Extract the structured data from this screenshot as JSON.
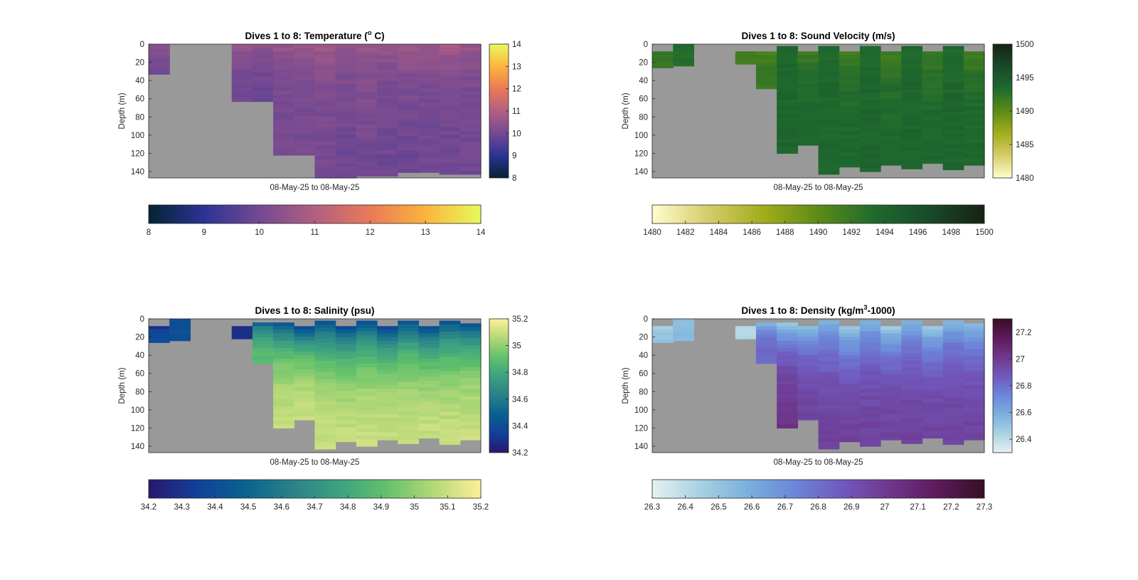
{
  "chart_data": [
    {
      "id": "temperature",
      "type": "heatmap",
      "title": "Dives 1 to 8: Temperature (°C)",
      "title_parts": [
        "Dives 1 to 8: Temperature (",
        "o",
        " C)"
      ],
      "xlabel": "08-May-25 to 08-May-25",
      "ylabel": "Depth (m)",
      "ylim": [
        0,
        147
      ],
      "y_ticks": [
        "0",
        "20",
        "40",
        "60",
        "80",
        "100",
        "120",
        "140"
      ],
      "colormap": "thermal",
      "clim": [
        8,
        14
      ],
      "colorbar_right_ticks": [
        "8",
        "9",
        "10",
        "11",
        "12",
        "13",
        "14"
      ],
      "colorbar_bottom_ticks": [
        "8",
        "9",
        "10",
        "11",
        "12",
        "13",
        "14"
      ],
      "profiles": [
        {
          "max_depth": 33,
          "surface": 10.6,
          "deep": 10.0
        },
        {
          "max_depth": 0,
          "surface": 10.5,
          "deep": 10.0
        },
        {
          "max_depth": 0,
          "surface": 10.5,
          "deep": 10.0
        },
        {
          "max_depth": 0,
          "surface": 10.5,
          "deep": 10.0
        },
        {
          "max_depth": 63,
          "surface": 10.6,
          "deep": 9.9
        },
        {
          "max_depth": 63,
          "surface": 10.5,
          "deep": 9.9
        },
        {
          "max_depth": 122,
          "surface": 10.6,
          "deep": 10.0
        },
        {
          "max_depth": 122,
          "surface": 10.6,
          "deep": 10.0
        },
        {
          "max_depth": 147,
          "surface": 10.7,
          "deep": 10.0
        },
        {
          "max_depth": 147,
          "surface": 10.6,
          "deep": 9.9
        },
        {
          "max_depth": 145,
          "surface": 10.7,
          "deep": 10.0
        },
        {
          "max_depth": 145,
          "surface": 10.6,
          "deep": 9.9
        },
        {
          "max_depth": 141,
          "surface": 10.7,
          "deep": 9.9
        },
        {
          "max_depth": 141,
          "surface": 10.6,
          "deep": 9.9
        },
        {
          "max_depth": 143,
          "surface": 10.8,
          "deep": 9.9
        },
        {
          "max_depth": 143,
          "surface": 10.6,
          "deep": 9.9
        }
      ]
    },
    {
      "id": "sound_velocity",
      "type": "heatmap",
      "title": "Dives 1 to 8: Sound Velocity (m/s)",
      "title_parts": [
        "Dives 1 to 8: Sound Velocity (m/s)",
        "",
        ""
      ],
      "xlabel": "08-May-25 to 08-May-25",
      "ylabel": "Depth (m)",
      "ylim": [
        0,
        147
      ],
      "y_ticks": [
        "0",
        "20",
        "40",
        "60",
        "80",
        "100",
        "120",
        "140"
      ],
      "colormap": "speed",
      "clim": [
        1480,
        1500
      ],
      "colorbar_right_ticks": [
        "1480",
        "1485",
        "1490",
        "1495",
        "1500"
      ],
      "colorbar_bottom_ticks": [
        "1480",
        "1482",
        "1484",
        "1486",
        "1488",
        "1490",
        "1492",
        "1494",
        "1496",
        "1498",
        "1500"
      ],
      "profiles": [
        {
          "top_depth": 8,
          "max_depth": 26,
          "surface": 1492.5,
          "deep": 1492.0
        },
        {
          "top_depth": 0,
          "max_depth": 24,
          "surface": 1494.0,
          "deep": 1493.0
        },
        {
          "max_depth": 0,
          "surface": 1492,
          "deep": 1492
        },
        {
          "max_depth": 0,
          "surface": 1492,
          "deep": 1492
        },
        {
          "top_depth": 8,
          "max_depth": 22,
          "surface": 1491.0,
          "deep": 1491.5
        },
        {
          "top_depth": 8,
          "max_depth": 49,
          "surface": 1491.0,
          "deep": 1492.0
        },
        {
          "top_depth": 2,
          "max_depth": 120,
          "surface": 1493.5,
          "deep": 1493.8
        },
        {
          "top_depth": 8,
          "max_depth": 111,
          "surface": 1491.5,
          "deep": 1493.8
        },
        {
          "top_depth": 2,
          "max_depth": 143,
          "surface": 1493.5,
          "deep": 1493.8
        },
        {
          "top_depth": 8,
          "max_depth": 135,
          "surface": 1491.5,
          "deep": 1493.8
        },
        {
          "top_depth": 2,
          "max_depth": 140,
          "surface": 1493.5,
          "deep": 1493.8
        },
        {
          "top_depth": 8,
          "max_depth": 133,
          "surface": 1491.5,
          "deep": 1493.8
        },
        {
          "top_depth": 2,
          "max_depth": 137,
          "surface": 1493.5,
          "deep": 1493.8
        },
        {
          "top_depth": 8,
          "max_depth": 131,
          "surface": 1491.5,
          "deep": 1493.8
        },
        {
          "top_depth": 2,
          "max_depth": 138,
          "surface": 1493.5,
          "deep": 1493.8
        },
        {
          "top_depth": 8,
          "max_depth": 133,
          "surface": 1491.5,
          "deep": 1493.8
        }
      ]
    },
    {
      "id": "salinity",
      "type": "heatmap",
      "title": "Dives 1 to 8: Salinity (psu)",
      "title_parts": [
        "Dives 1 to 8: Salinity (psu)",
        "",
        ""
      ],
      "xlabel": "08-May-25 to 08-May-25",
      "ylabel": "Depth (m)",
      "ylim": [
        0,
        147
      ],
      "y_ticks": [
        "0",
        "20",
        "40",
        "60",
        "80",
        "100",
        "120",
        "140"
      ],
      "colormap": "haline",
      "clim": [
        34.2,
        35.2
      ],
      "colorbar_right_ticks": [
        "34.2",
        "34.4",
        "34.6",
        "34.8",
        "35",
        "35.2"
      ],
      "colorbar_bottom_ticks": [
        "34.2",
        "34.3",
        "34.4",
        "34.5",
        "34.6",
        "34.7",
        "34.8",
        "34.9",
        "35",
        "35.1",
        "35.2"
      ],
      "profiles": [
        {
          "top_depth": 8,
          "max_depth": 26,
          "surface": 34.28,
          "deep": 34.4
        },
        {
          "top_depth": 0,
          "max_depth": 24,
          "surface": 34.42,
          "deep": 34.42
        },
        {
          "max_depth": 0,
          "surface": 34.5,
          "deep": 34.5
        },
        {
          "max_depth": 0,
          "surface": 34.5,
          "deep": 34.5
        },
        {
          "top_depth": 8,
          "max_depth": 22,
          "surface": 34.28,
          "deep": 34.3
        },
        {
          "top_depth": 4,
          "max_depth": 49,
          "surface": 34.45,
          "deep": 34.9
        },
        {
          "top_depth": 4,
          "max_depth": 120,
          "surface": 34.4,
          "deep": 35.12
        },
        {
          "top_depth": 8,
          "max_depth": 111,
          "surface": 34.35,
          "deep": 35.12
        },
        {
          "top_depth": 2,
          "max_depth": 143,
          "surface": 34.4,
          "deep": 35.12
        },
        {
          "top_depth": 8,
          "max_depth": 135,
          "surface": 34.35,
          "deep": 35.12
        },
        {
          "top_depth": 2,
          "max_depth": 140,
          "surface": 34.4,
          "deep": 35.12
        },
        {
          "top_depth": 8,
          "max_depth": 133,
          "surface": 34.35,
          "deep": 35.12
        },
        {
          "top_depth": 2,
          "max_depth": 137,
          "surface": 34.4,
          "deep": 35.12
        },
        {
          "top_depth": 8,
          "max_depth": 131,
          "surface": 34.35,
          "deep": 35.12
        },
        {
          "top_depth": 2,
          "max_depth": 138,
          "surface": 34.4,
          "deep": 35.12
        },
        {
          "top_depth": 5,
          "max_depth": 133,
          "surface": 34.4,
          "deep": 35.12
        }
      ]
    },
    {
      "id": "density",
      "type": "heatmap",
      "title": "Dives 1 to 8: Density (kg/m³-1000)",
      "title_parts": [
        "Dives 1 to 8: Density (kg/m",
        "3",
        "-1000)"
      ],
      "xlabel": "08-May-25 to 08-May-25",
      "ylabel": "Depth (m)",
      "ylim": [
        0,
        147
      ],
      "y_ticks": [
        "0",
        "20",
        "40",
        "60",
        "80",
        "100",
        "120",
        "140"
      ],
      "colormap": "dense",
      "clim": [
        26.3,
        27.3
      ],
      "colorbar_right_ticks": [
        "26.4",
        "26.6",
        "26.8",
        "27",
        "27.2"
      ],
      "colorbar_bottom_ticks": [
        "26.3",
        "26.4",
        "26.5",
        "26.6",
        "26.7",
        "26.8",
        "26.9",
        "27",
        "27.1",
        "27.2",
        "27.3"
      ],
      "profiles": [
        {
          "top_depth": 8,
          "max_depth": 26,
          "surface": 26.4,
          "deep": 26.5
        },
        {
          "top_depth": 0,
          "max_depth": 24,
          "surface": 26.5,
          "deep": 26.55
        },
        {
          "max_depth": 0,
          "surface": 26.5,
          "deep": 26.5
        },
        {
          "max_depth": 0,
          "surface": 26.5,
          "deep": 26.5
        },
        {
          "top_depth": 8,
          "max_depth": 22,
          "surface": 26.38,
          "deep": 26.42
        },
        {
          "top_depth": 4,
          "max_depth": 49,
          "surface": 26.55,
          "deep": 26.85
        },
        {
          "top_depth": 4,
          "max_depth": 120,
          "surface": 26.45,
          "deep": 27.05
        },
        {
          "top_depth": 8,
          "max_depth": 111,
          "surface": 26.5,
          "deep": 26.98
        },
        {
          "top_depth": 2,
          "max_depth": 143,
          "surface": 26.55,
          "deep": 26.98
        },
        {
          "top_depth": 8,
          "max_depth": 135,
          "surface": 26.45,
          "deep": 26.98
        },
        {
          "top_depth": 2,
          "max_depth": 140,
          "surface": 26.55,
          "deep": 26.98
        },
        {
          "top_depth": 8,
          "max_depth": 133,
          "surface": 26.45,
          "deep": 26.98
        },
        {
          "top_depth": 2,
          "max_depth": 137,
          "surface": 26.55,
          "deep": 26.98
        },
        {
          "top_depth": 8,
          "max_depth": 131,
          "surface": 26.45,
          "deep": 26.98
        },
        {
          "top_depth": 2,
          "max_depth": 138,
          "surface": 26.55,
          "deep": 26.98
        },
        {
          "top_depth": 5,
          "max_depth": 133,
          "surface": 26.5,
          "deep": 26.98
        }
      ]
    }
  ],
  "colormaps": {
    "thermal": [
      "#042333",
      "#2c3395",
      "#744992",
      "#b15f82",
      "#eb7958",
      "#fbb43d",
      "#e8fa5b"
    ],
    "speed": [
      "#fffdcd",
      "#d7cc6b",
      "#a2ad1b",
      "#5d8b16",
      "#1f6a2e",
      "#184a2a",
      "#172313"
    ],
    "haline": [
      "#2a186c",
      "#123f9b",
      "#08628e",
      "#2a8089",
      "#3ca180",
      "#62c16b",
      "#b3d877",
      "#fdef9a"
    ],
    "dense": [
      "#e6f1f1",
      "#a9d1e2",
      "#7ab0dd",
      "#6c86d9",
      "#7059be",
      "#6f378c",
      "#5e1a5c",
      "#360e24"
    ]
  },
  "nodata_color": "#999999"
}
